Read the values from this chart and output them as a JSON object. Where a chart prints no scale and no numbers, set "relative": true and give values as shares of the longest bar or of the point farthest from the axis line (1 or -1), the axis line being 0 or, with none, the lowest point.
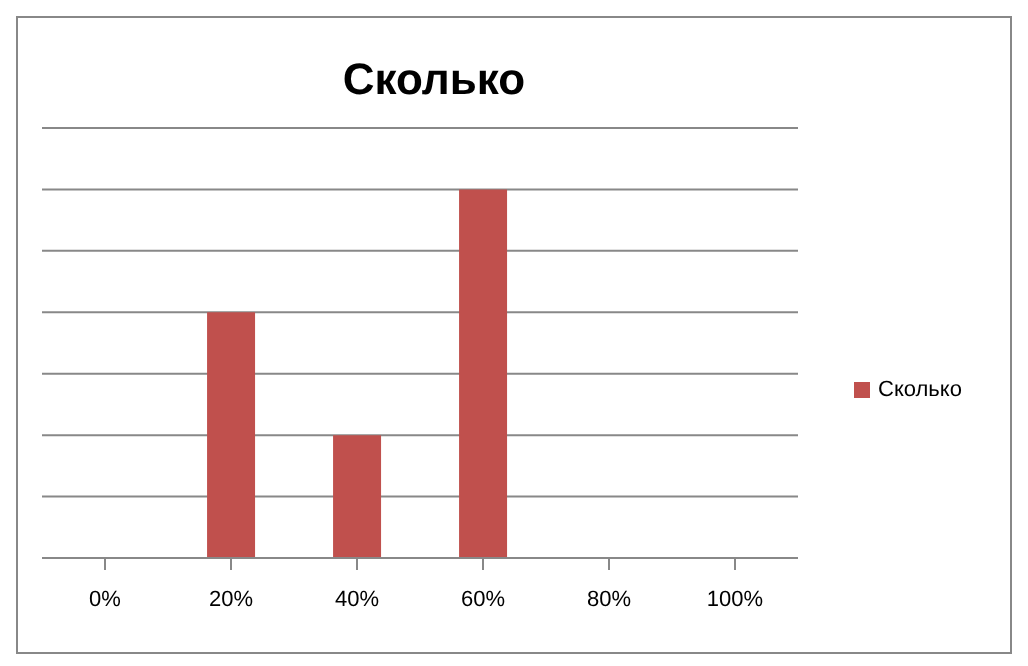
{
  "chart_data": {
    "type": "bar",
    "title": "Сколько",
    "relative": true,
    "categories": [
      "0%",
      "20%",
      "40%",
      "60%",
      "80%",
      "100%"
    ],
    "series": [
      {
        "name": "Сколько",
        "color": "#c0504d",
        "values": [
          0,
          0.667,
          0.333,
          1,
          0,
          0
        ]
      }
    ],
    "grid": "y",
    "legend": "right"
  }
}
